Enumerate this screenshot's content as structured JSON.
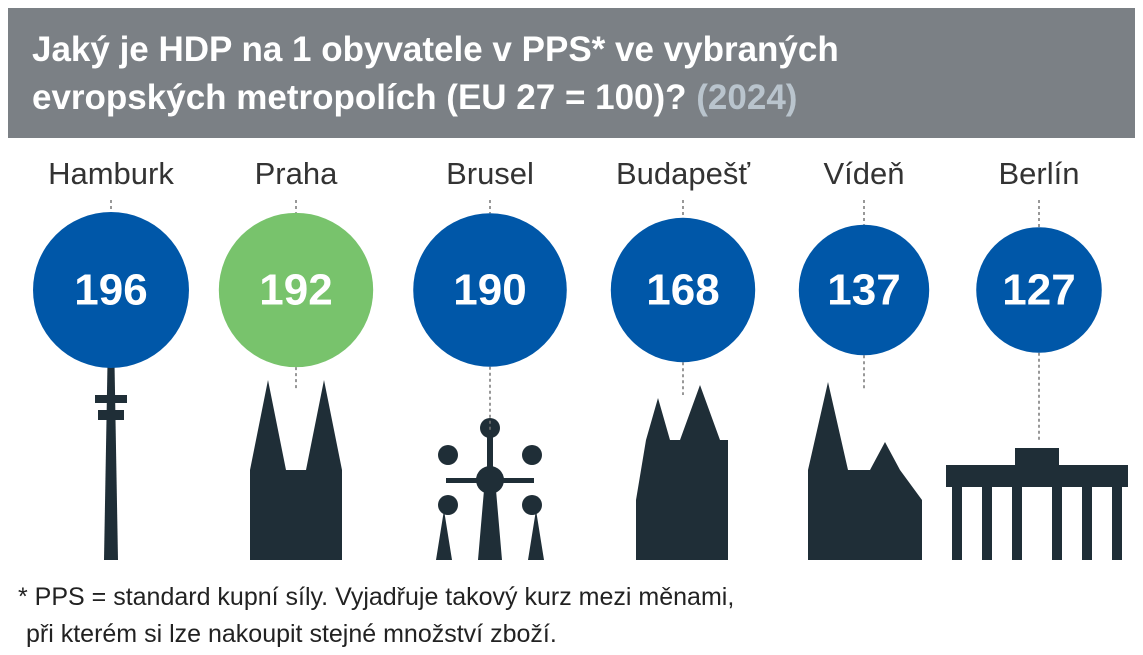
{
  "chart_data": {
    "type": "bubble",
    "title": "Jaký je HDP na 1 obyvatele v PPS* ve vybraných evropských metropolích (EU 27 = 100)?",
    "subtitle": "(2024)",
    "categories": [
      "Hamburk",
      "Praha",
      "Brusel",
      "Budapešť",
      "Vídeň",
      "Berlín"
    ],
    "values": [
      196,
      192,
      190,
      168,
      137,
      127
    ],
    "colors": [
      "#0057a8",
      "#78c36c",
      "#0057a8",
      "#0057a8",
      "#0057a8",
      "#0057a8"
    ],
    "footnote": [
      "* PPS = standard kupní síly. Vyjadřuje takový kurz mezi měnami,",
      "při kterém si lze nakoupit stejné množství zboží."
    ]
  }
}
